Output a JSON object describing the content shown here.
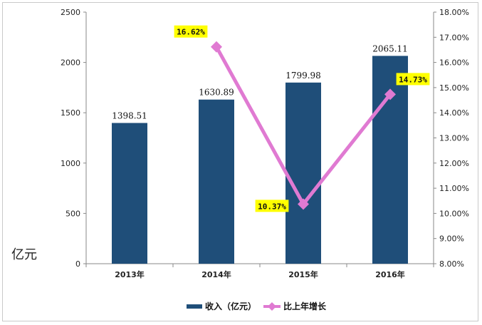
{
  "chart_data": {
    "type": "bar",
    "categories": [
      "2013年",
      "2014年",
      "2015年",
      "2016年"
    ],
    "series": [
      {
        "name": "收入（亿元）",
        "axis": "left",
        "type": "bar",
        "color": "#1f4e79",
        "values": [
          1398.51,
          1630.89,
          1799.98,
          2065.11
        ],
        "labels": [
          "1398.51",
          "1630.89",
          "1799.98",
          "2065.11"
        ]
      },
      {
        "name": "比上年增长",
        "axis": "right",
        "type": "line",
        "color": "#e07ad2",
        "values": [
          null,
          16.62,
          10.37,
          14.73
        ],
        "labels": [
          "",
          "16.62%",
          "10.37%",
          "14.73%"
        ],
        "label_background": "#ffff00"
      }
    ],
    "ylabel": "亿元",
    "ylim": [
      0,
      2500
    ],
    "y_ticks": [
      "0",
      "500",
      "1000",
      "1500",
      "2000",
      "2500"
    ],
    "y2lim": [
      8,
      18
    ],
    "y2_ticks": [
      "8.00%",
      "9.00%",
      "10.00%",
      "11.00%",
      "12.00%",
      "13.00%",
      "14.00%",
      "15.00%",
      "16.00%",
      "17.00%",
      "18.00%"
    ],
    "grid": false,
    "legend_position": "bottom"
  }
}
